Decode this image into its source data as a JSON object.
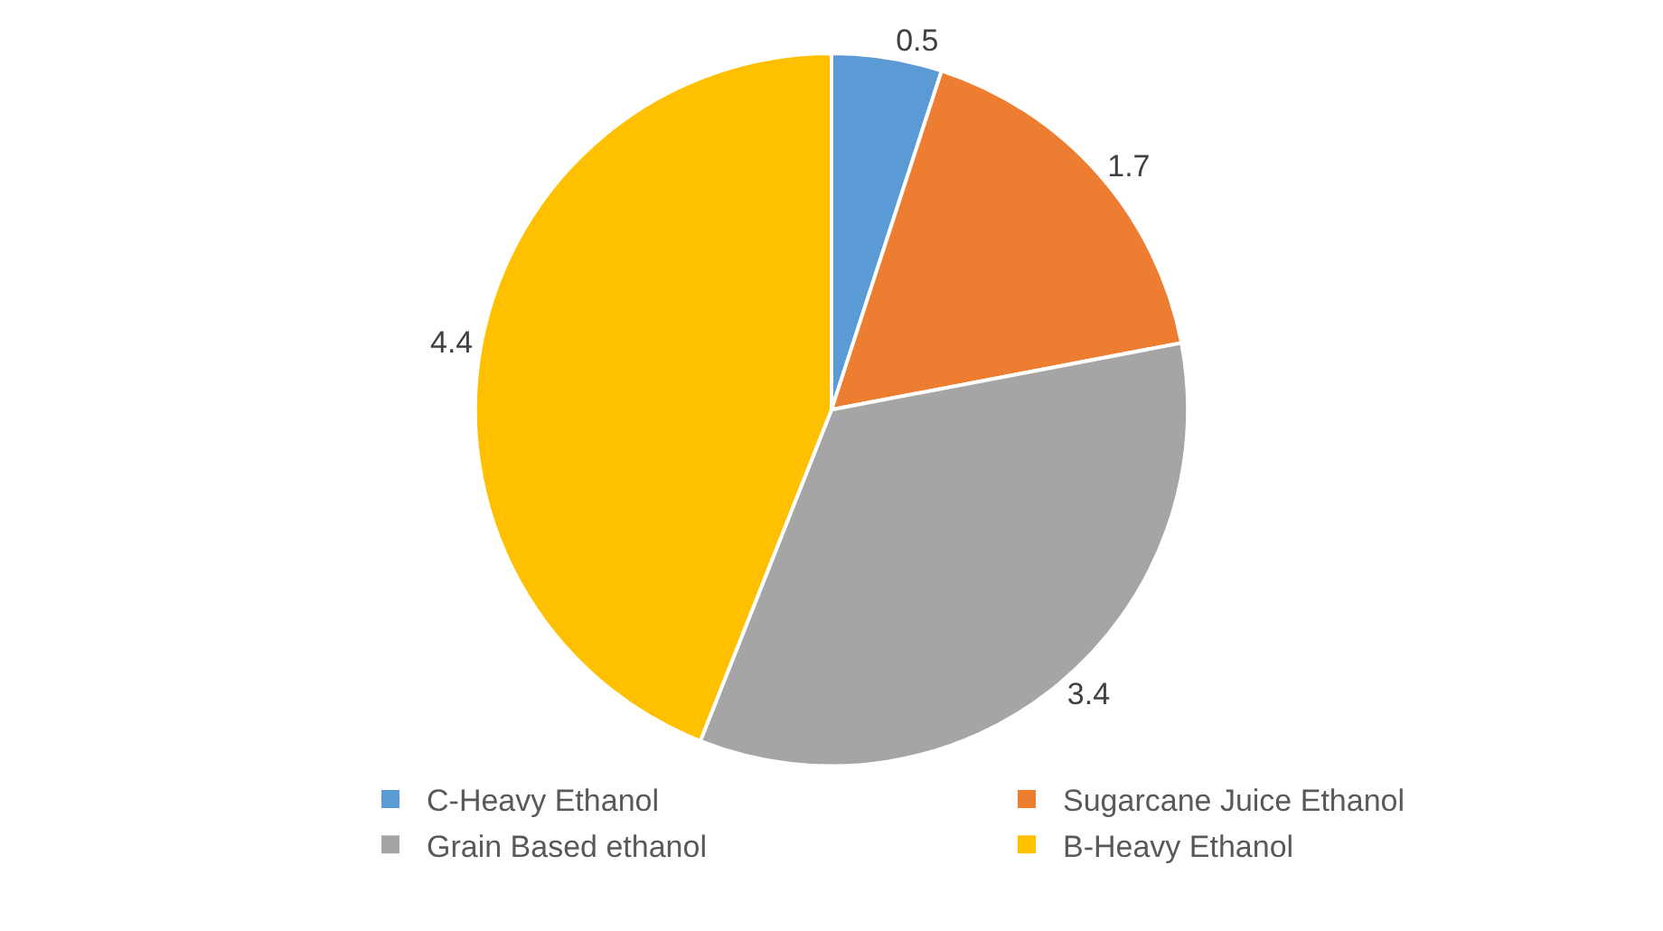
{
  "chart_data": {
    "type": "pie",
    "categories": [
      "C-Heavy Ethanol",
      "Sugarcane Juice Ethanol",
      "Grain Based ethanol",
      "B-Heavy Ethanol"
    ],
    "values": [
      0.5,
      1.7,
      3.4,
      4.4
    ],
    "colors": [
      "#5b9bd5",
      "#ed7d31",
      "#a5a5a5",
      "#ffc000"
    ],
    "data_labels": true,
    "legend": "bottom"
  }
}
